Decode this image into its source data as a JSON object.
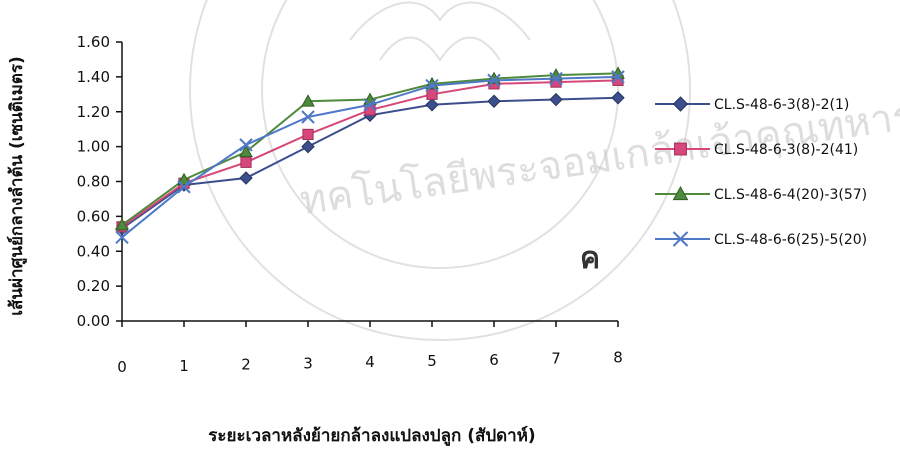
{
  "watermark": {
    "arc_text_left": "ทคโนโลยีพระจอมเกล้าเจ้าคุณทหาร"
  },
  "panel_mark": "ค",
  "chart_data": {
    "type": "line",
    "title": "",
    "xlabel": "ระยะเวลาหลังย้ายกล้าลงแปลงปลูก (สัปดาห์)",
    "ylabel": "เส้นผ่าศูนย์กลางลำต้น (เซนติเมตร)",
    "x": [
      0,
      1,
      2,
      3,
      4,
      5,
      6,
      7,
      8
    ],
    "x_tick_labels": [
      "0",
      "1",
      "2",
      "3",
      "4",
      "5",
      "6",
      "7",
      "8"
    ],
    "ylim": [
      0,
      1.6
    ],
    "y_ticks": [
      0.0,
      0.2,
      0.4,
      0.6,
      0.8,
      1.0,
      1.2,
      1.4,
      1.6
    ],
    "y_tick_labels": [
      "0.00",
      "0.20",
      "0.40",
      "0.60",
      "0.80",
      "1.00",
      "1.20",
      "1.40",
      "1.60"
    ],
    "grid": false,
    "legend_position": "right",
    "series": [
      {
        "name": "CL.S-48-6-3(8)-2(1)",
        "color": "#3c4e8c",
        "marker": "diamond",
        "values": [
          0.53,
          0.78,
          0.82,
          1.0,
          1.18,
          1.24,
          1.26,
          1.27,
          1.28
        ]
      },
      {
        "name": "CL.S-48-6-3(8)-2(41)",
        "color": "#d6477a",
        "marker": "square",
        "values": [
          0.54,
          0.79,
          0.91,
          1.07,
          1.21,
          1.3,
          1.36,
          1.37,
          1.38
        ]
      },
      {
        "name": "CL.S-48-6-4(20)-3(57)",
        "color": "#4e8a3c",
        "marker": "triangle",
        "values": [
          0.55,
          0.81,
          0.97,
          1.26,
          1.27,
          1.36,
          1.39,
          1.41,
          1.42
        ]
      },
      {
        "name": "CL.S-48-6-6(25)-5(20)",
        "color": "#4f78c8",
        "marker": "x",
        "values": [
          0.48,
          0.77,
          1.01,
          1.17,
          1.24,
          1.35,
          1.38,
          1.39,
          1.4
        ]
      }
    ]
  }
}
